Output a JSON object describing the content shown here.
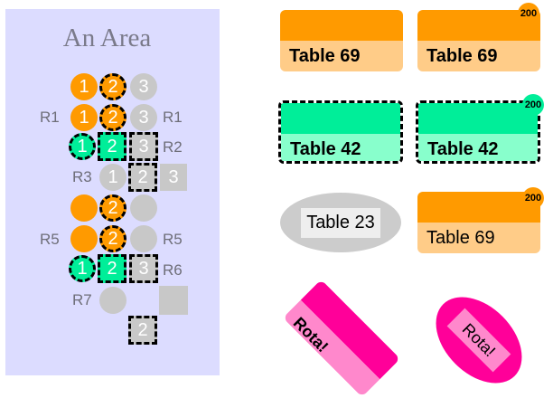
{
  "area": {
    "title": "An Area"
  },
  "rows": [
    {
      "left_label": "",
      "right_label": "",
      "seats": [
        "1",
        "2",
        "3"
      ]
    },
    {
      "left_label": "R1",
      "right_label": "R1",
      "seats": [
        "1",
        "2",
        "3"
      ]
    },
    {
      "left_label": "",
      "right_label": "R2",
      "seats": [
        "1",
        "2",
        "3"
      ]
    },
    {
      "left_label": "R3",
      "right_label": "",
      "seats": [
        "1",
        "2",
        "3"
      ]
    },
    {
      "left_label": "",
      "right_label": "",
      "seats": [
        "",
        "2",
        ""
      ]
    },
    {
      "left_label": "R5",
      "right_label": "R5",
      "seats": [
        "",
        "2",
        ""
      ]
    },
    {
      "left_label": "",
      "right_label": "R6",
      "seats": [
        "1",
        "2",
        "3"
      ]
    },
    {
      "left_label": "R7",
      "right_label": "",
      "seats": [
        "",
        ""
      ]
    },
    {
      "left_label": "",
      "right_label": "",
      "seats": [
        "2"
      ]
    }
  ],
  "tables": {
    "t1": {
      "label": "Table 69"
    },
    "t2": {
      "label": "Table 69",
      "badge": "200"
    },
    "t3": {
      "label": "Table 42"
    },
    "t4": {
      "label": "Table 42",
      "badge": "200"
    },
    "t5": {
      "label": "Table 23"
    },
    "t6": {
      "label": "Table 69",
      "badge": "200"
    },
    "t7": {
      "label": "Rota!"
    },
    "t8": {
      "label": "Rota!"
    }
  },
  "colors": {
    "orange": "#ff9a00",
    "green": "#00ee99",
    "gray": "#c8c8c8",
    "pink": "#ff0099",
    "area": "#dcdcff"
  }
}
